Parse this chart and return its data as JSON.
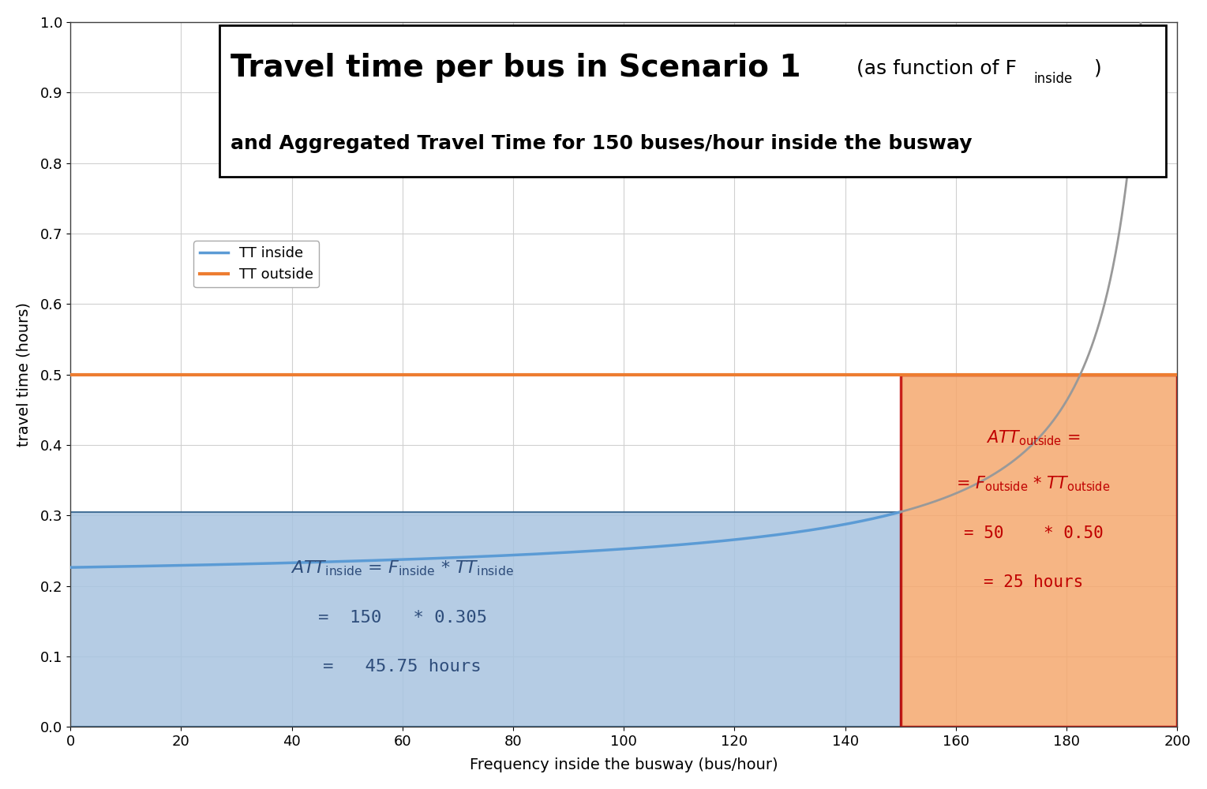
{
  "title_line1": "Travel time per bus in Scenario 1",
  "title_sub": "(as function of F",
  "title_sub_script": "inside",
  "title_sub_close": ")",
  "title_line2": "and Aggregated Travel Time for 150 buses/hour inside the busway",
  "xlabel": "Frequency inside the busway (bus/hour)",
  "ylabel": "travel time (hours)",
  "xlim": [
    0,
    200
  ],
  "ylim": [
    0.0,
    1.0
  ],
  "xticks": [
    0,
    20,
    40,
    60,
    80,
    100,
    120,
    140,
    160,
    180,
    200
  ],
  "yticks": [
    0.0,
    0.1,
    0.2,
    0.3,
    0.4,
    0.5,
    0.6,
    0.7,
    0.8,
    0.9,
    1.0
  ],
  "F_inside_highlight": 150,
  "F_outside": 50,
  "TT_inside_at_highlight": 0.305,
  "TT_outside": 0.5,
  "TT_free_flow": 0.2,
  "capacity_asymptote": 200.0,
  "curve_k": 5.25,
  "blue_shade_color": "#a8c4e0",
  "orange_shade_color": "#f5a86e",
  "blue_line_color": "#5b9bd5",
  "orange_line_color": "#ed7d31",
  "gray_line_color": "#999999",
  "att_inside_color": "#2e4d7b",
  "att_outside_color": "#c00000",
  "red_border_color": "#c00000",
  "legend_tt_inside": "TT inside",
  "legend_tt_outside": "TT outside",
  "background_color": "#ffffff",
  "grid_color": "#d0d0d0",
  "title_fontsize_large": 28,
  "title_fontsize_small": 18,
  "title_fontsize_sub": 13,
  "axis_label_fontsize": 14,
  "tick_fontsize": 13,
  "legend_fontsize": 13,
  "att_fontsize_main": 16,
  "att_fontsize_calc": 16
}
